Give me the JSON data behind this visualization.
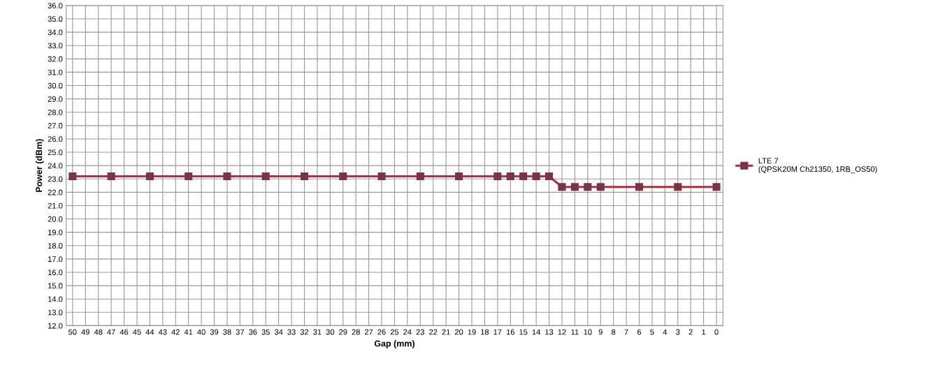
{
  "chart_data": {
    "type": "line",
    "xlabel": "Gap (mm)",
    "ylabel": "Power (dBm)",
    "categories": [
      "50",
      "49",
      "48",
      "47",
      "46",
      "45",
      "44",
      "43",
      "42",
      "41",
      "40",
      "39",
      "38",
      "37",
      "36",
      "35",
      "34",
      "33",
      "32",
      "31",
      "30",
      "29",
      "28",
      "27",
      "26",
      "25",
      "24",
      "23",
      "22",
      "21",
      "20",
      "19",
      "18",
      "17",
      "16",
      "15",
      "14",
      "13",
      "12",
      "11",
      "10",
      "9",
      "8",
      "7",
      "6",
      "5",
      "4",
      "3",
      "2",
      "1",
      "0"
    ],
    "series": [
      {
        "name": "LTE 7\n(QPSK20M Ch21350, 1RB_OS50)",
        "color": "#b5303f",
        "values": [
          23.2,
          null,
          null,
          23.2,
          null,
          null,
          23.2,
          null,
          null,
          23.2,
          null,
          null,
          23.2,
          null,
          null,
          23.2,
          null,
          null,
          23.2,
          null,
          null,
          23.2,
          null,
          null,
          23.2,
          null,
          null,
          23.2,
          null,
          null,
          23.2,
          null,
          null,
          23.2,
          23.2,
          23.2,
          23.2,
          23.2,
          22.4,
          22.4,
          22.4,
          22.4,
          null,
          null,
          22.4,
          null,
          null,
          22.4,
          null,
          null,
          22.4
        ]
      }
    ],
    "ylim": [
      12,
      36
    ],
    "yticks": [
      {
        "value": 12,
        "label": "12.0"
      },
      {
        "value": 13,
        "label": "13.0"
      },
      {
        "value": 14,
        "label": "14.0"
      },
      {
        "value": 15,
        "label": "15.0"
      },
      {
        "value": 16,
        "label": "16.0"
      },
      {
        "value": 17,
        "label": "17.0"
      },
      {
        "value": 18,
        "label": "18.0"
      },
      {
        "value": 19,
        "label": "19.0"
      },
      {
        "value": 20,
        "label": "20.0"
      },
      {
        "value": 21,
        "label": "21.0"
      },
      {
        "value": 22,
        "label": "22.0"
      },
      {
        "value": 23,
        "label": "23.0"
      },
      {
        "value": 24,
        "label": "24.0"
      },
      {
        "value": 25,
        "label": "25.0"
      },
      {
        "value": 26,
        "label": "26.0"
      },
      {
        "value": 27,
        "label": "27.0"
      },
      {
        "value": 28,
        "label": "28.0"
      },
      {
        "value": 29,
        "label": "29.0"
      },
      {
        "value": 30,
        "label": "30.0"
      },
      {
        "value": 31,
        "label": "31.0"
      },
      {
        "value": 32,
        "label": "32.0"
      },
      {
        "value": 33,
        "label": "33.0"
      },
      {
        "value": 34,
        "label": "34.0"
      },
      {
        "value": 35,
        "label": "35.0"
      },
      {
        "value": 36,
        "label": "36.0"
      }
    ],
    "grid": true,
    "legend": "right",
    "marker": "square",
    "line_style": "solid"
  }
}
